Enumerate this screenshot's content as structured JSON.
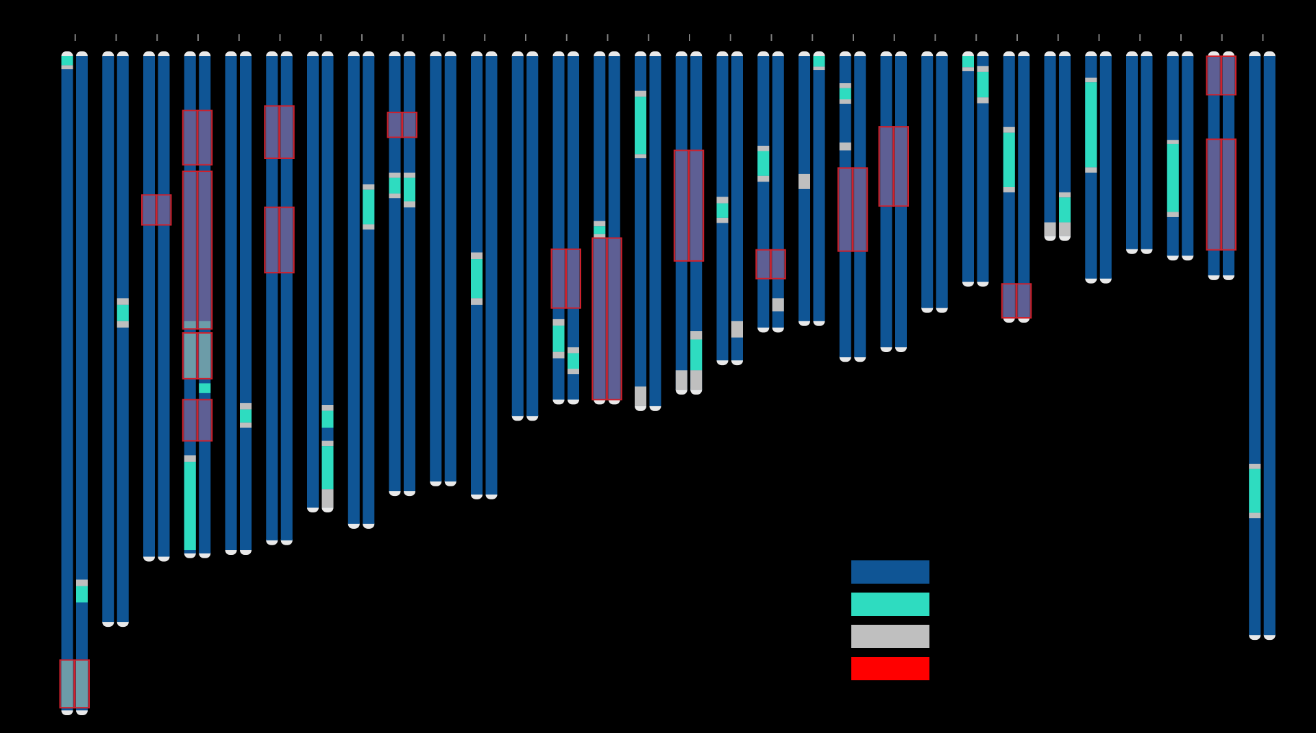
{
  "figure_type": "chromosome ideogram (karyogram) with per-haplotype segment colouring",
  "palette": {
    "background": "#000000",
    "base": "#0f5595",
    "teal": "#2edcc0",
    "grey": "#bfbfbf",
    "highlight_fill": "#a06894",
    "highlight_border": "#d0202c",
    "cap": "#e9e9e9",
    "tick": "#808080"
  },
  "legend": [
    {
      "label": "",
      "color": "#0f5595"
    },
    {
      "label": "",
      "color": "#2edcc0"
    },
    {
      "label": "",
      "color": "#bfbfbf"
    },
    {
      "label": "",
      "color": "#ff0000"
    }
  ],
  "chromosomes": [
    {
      "len": 100,
      "segs": [
        {
          "s": 0.0,
          "e": 1.4,
          "c": "teal",
          "h": "left"
        },
        {
          "s": 1.4,
          "e": 2.0,
          "c": "grey",
          "h": "left"
        },
        {
          "s": 80.0,
          "e": 81.0,
          "c": "grey",
          "h": "right"
        },
        {
          "s": 81.0,
          "e": 83.5,
          "c": "teal",
          "h": "right"
        },
        {
          "s": 92.3,
          "e": 99.6,
          "c": "teal",
          "h": "both"
        }
      ],
      "boxes": [
        {
          "s": 92.3,
          "e": 99.6
        }
      ]
    },
    {
      "len": 86.5,
      "segs": [
        {
          "s": 37.0,
          "e": 38.0,
          "c": "grey",
          "h": "right"
        },
        {
          "s": 38.0,
          "e": 40.5,
          "c": "teal",
          "h": "right"
        },
        {
          "s": 40.5,
          "e": 41.5,
          "c": "grey",
          "h": "right"
        }
      ],
      "boxes": []
    },
    {
      "len": 76.5,
      "segs": [],
      "boxes": [
        {
          "s": 21.2,
          "e": 25.8
        }
      ]
    },
    {
      "len": 76.0,
      "segs": [
        {
          "s": 40.5,
          "e": 41.7,
          "c": "teal",
          "h": "both"
        },
        {
          "s": 42.3,
          "e": 49.3,
          "c": "teal",
          "h": "both"
        },
        {
          "s": 50.0,
          "e": 51.5,
          "c": "teal",
          "h": "right"
        },
        {
          "s": 61.0,
          "e": 62.0,
          "c": "grey",
          "h": "left"
        },
        {
          "s": 62.0,
          "e": 75.5,
          "c": "teal",
          "h": "left"
        }
      ],
      "boxes": [
        {
          "s": 8.3,
          "e": 16.6
        },
        {
          "s": 17.6,
          "e": 41.7
        },
        {
          "s": 42.3,
          "e": 49.3
        },
        {
          "s": 52.5,
          "e": 58.8
        }
      ]
    },
    {
      "len": 75.5,
      "segs": [
        {
          "s": 53.0,
          "e": 54.0,
          "c": "grey",
          "h": "right"
        },
        {
          "s": 54.0,
          "e": 56.0,
          "c": "teal",
          "h": "right"
        },
        {
          "s": 56.0,
          "e": 56.8,
          "c": "grey",
          "h": "right"
        }
      ],
      "boxes": []
    },
    {
      "len": 74.0,
      "segs": [],
      "boxes": [
        {
          "s": 7.6,
          "e": 15.6
        },
        {
          "s": 23.1,
          "e": 33.1
        }
      ]
    },
    {
      "len": 69.0,
      "segs": [
        {
          "s": 53.3,
          "e": 54.2,
          "c": "grey",
          "h": "right"
        },
        {
          "s": 54.2,
          "e": 56.8,
          "c": "teal",
          "h": "right"
        },
        {
          "s": 58.8,
          "e": 59.6,
          "c": "grey",
          "h": "right"
        },
        {
          "s": 59.6,
          "e": 66.2,
          "c": "teal",
          "h": "right"
        },
        {
          "s": 66.2,
          "e": 69.0,
          "c": "grey",
          "h": "right"
        }
      ],
      "boxes": []
    },
    {
      "len": 71.5,
      "segs": [
        {
          "s": 19.6,
          "e": 20.4,
          "c": "grey",
          "h": "right"
        },
        {
          "s": 20.4,
          "e": 25.7,
          "c": "teal",
          "h": "right"
        },
        {
          "s": 25.7,
          "e": 26.5,
          "c": "grey",
          "h": "right"
        }
      ],
      "boxes": []
    },
    {
      "len": 66.5,
      "segs": [
        {
          "s": 17.8,
          "e": 18.6,
          "c": "grey",
          "h": "both"
        },
        {
          "s": 18.6,
          "e": 21.0,
          "c": "teal",
          "h": "left"
        },
        {
          "s": 21.0,
          "e": 21.7,
          "c": "grey",
          "h": "left"
        },
        {
          "s": 18.6,
          "e": 22.2,
          "c": "teal",
          "h": "right"
        },
        {
          "s": 22.2,
          "e": 23.1,
          "c": "grey",
          "h": "right"
        }
      ],
      "boxes": [
        {
          "s": 8.6,
          "e": 12.4
        }
      ]
    },
    {
      "len": 65.0,
      "segs": [],
      "boxes": []
    },
    {
      "len": 67.0,
      "segs": [
        {
          "s": 30.0,
          "e": 31.0,
          "c": "grey",
          "h": "left"
        },
        {
          "s": 31.0,
          "e": 37.0,
          "c": "teal",
          "h": "left"
        },
        {
          "s": 37.0,
          "e": 38.0,
          "c": "grey",
          "h": "left"
        }
      ],
      "boxes": []
    },
    {
      "len": 55.0,
      "segs": [],
      "boxes": []
    },
    {
      "len": 52.5,
      "segs": [
        {
          "s": 40.2,
          "e": 41.2,
          "c": "grey",
          "h": "left"
        },
        {
          "s": 41.2,
          "e": 45.2,
          "c": "teal",
          "h": "left"
        },
        {
          "s": 45.2,
          "e": 46.2,
          "c": "grey",
          "h": "left"
        },
        {
          "s": 44.5,
          "e": 45.4,
          "c": "grey",
          "h": "right"
        },
        {
          "s": 45.4,
          "e": 47.8,
          "c": "teal",
          "h": "right"
        },
        {
          "s": 47.8,
          "e": 48.6,
          "c": "grey",
          "h": "right"
        }
      ],
      "boxes": [
        {
          "s": 29.5,
          "e": 38.5
        }
      ]
    },
    {
      "len": 52.5,
      "segs": [
        {
          "s": 25.2,
          "e": 26.0,
          "c": "grey",
          "h": "left"
        },
        {
          "s": 26.0,
          "e": 27.2,
          "c": "teal",
          "h": "left"
        },
        {
          "s": 27.2,
          "e": 27.8,
          "c": "grey",
          "h": "left"
        }
      ],
      "boxes": [
        {
          "s": 27.8,
          "e": 52.5
        }
      ]
    },
    {
      "len": 53.5,
      "segs": [
        {
          "s": 5.3,
          "e": 6.2,
          "c": "grey",
          "h": "left"
        },
        {
          "s": 6.2,
          "e": 15.0,
          "c": "teal",
          "h": "left"
        },
        {
          "s": 15.0,
          "e": 15.6,
          "c": "grey",
          "h": "left"
        },
        {
          "s": 50.5,
          "e": 53.5,
          "c": "grey",
          "h": "left"
        }
      ],
      "boxes": []
    },
    {
      "len": 51.0,
      "segs": [
        {
          "s": 42.0,
          "e": 43.3,
          "c": "grey",
          "h": "right"
        },
        {
          "s": 43.3,
          "e": 48.0,
          "c": "teal",
          "h": "right"
        },
        {
          "s": 48.0,
          "e": 51.0,
          "c": "grey",
          "h": "left"
        },
        {
          "s": 48.0,
          "e": 51.0,
          "c": "grey",
          "h": "right"
        }
      ],
      "boxes": [
        {
          "s": 14.4,
          "e": 31.3
        }
      ]
    },
    {
      "len": 46.5,
      "segs": [
        {
          "s": 21.5,
          "e": 22.5,
          "c": "grey",
          "h": "left"
        },
        {
          "s": 22.5,
          "e": 24.7,
          "c": "teal",
          "h": "left"
        },
        {
          "s": 24.7,
          "e": 25.5,
          "c": "grey",
          "h": "left"
        },
        {
          "s": 40.5,
          "e": 43.0,
          "c": "grey",
          "h": "right"
        }
      ],
      "boxes": []
    },
    {
      "len": 41.5,
      "segs": [
        {
          "s": 13.7,
          "e": 14.5,
          "c": "grey",
          "h": "left"
        },
        {
          "s": 14.5,
          "e": 18.3,
          "c": "teal",
          "h": "left"
        },
        {
          "s": 18.3,
          "e": 19.2,
          "c": "grey",
          "h": "left"
        },
        {
          "s": 37.0,
          "e": 39.0,
          "c": "grey",
          "h": "right"
        }
      ],
      "boxes": [
        {
          "s": 29.6,
          "e": 34.0
        }
      ]
    },
    {
      "len": 40.5,
      "segs": [
        {
          "s": 0.0,
          "e": 1.6,
          "c": "teal",
          "h": "right"
        },
        {
          "s": 1.6,
          "e": 2.1,
          "c": "grey",
          "h": "right"
        },
        {
          "s": 18.0,
          "e": 20.3,
          "c": "grey",
          "h": "left"
        }
      ],
      "boxes": []
    },
    {
      "len": 46.0,
      "segs": [
        {
          "s": 4.1,
          "e": 4.9,
          "c": "grey",
          "h": "left"
        },
        {
          "s": 4.9,
          "e": 6.6,
          "c": "teal",
          "h": "left"
        },
        {
          "s": 6.6,
          "e": 7.3,
          "c": "grey",
          "h": "left"
        },
        {
          "s": 13.2,
          "e": 14.4,
          "c": "grey",
          "h": "left"
        }
      ],
      "boxes": [
        {
          "s": 17.1,
          "e": 29.8
        }
      ]
    },
    {
      "len": 44.5,
      "segs": [],
      "boxes": [
        {
          "s": 10.8,
          "e": 22.9
        }
      ]
    },
    {
      "len": 38.5,
      "segs": [],
      "boxes": []
    },
    {
      "len": 34.5,
      "segs": [
        {
          "s": 0.0,
          "e": 1.7,
          "c": "teal",
          "h": "left"
        },
        {
          "s": 1.7,
          "e": 2.3,
          "c": "grey",
          "h": "left"
        },
        {
          "s": 1.5,
          "e": 2.4,
          "c": "grey",
          "h": "right"
        },
        {
          "s": 2.4,
          "e": 6.3,
          "c": "teal",
          "h": "right"
        },
        {
          "s": 6.3,
          "e": 7.2,
          "c": "grey",
          "h": "right"
        }
      ],
      "boxes": []
    },
    {
      "len": 40.0,
      "segs": [
        {
          "s": 10.8,
          "e": 11.7,
          "c": "grey",
          "h": "left"
        },
        {
          "s": 11.7,
          "e": 20.0,
          "c": "teal",
          "h": "left"
        },
        {
          "s": 20.0,
          "e": 20.8,
          "c": "grey",
          "h": "left"
        }
      ],
      "boxes": [
        {
          "s": 34.8,
          "e": 40.0
        }
      ]
    },
    {
      "len": 27.5,
      "segs": [
        {
          "s": 25.4,
          "e": 27.5,
          "c": "grey",
          "h": "left"
        },
        {
          "s": 20.8,
          "e": 21.6,
          "c": "grey",
          "h": "right"
        },
        {
          "s": 21.6,
          "e": 25.4,
          "c": "teal",
          "h": "right"
        },
        {
          "s": 25.4,
          "e": 27.5,
          "c": "grey",
          "h": "right"
        }
      ],
      "boxes": []
    },
    {
      "len": 34.0,
      "segs": [
        {
          "s": 3.3,
          "e": 4.0,
          "c": "grey",
          "h": "left"
        },
        {
          "s": 4.0,
          "e": 17.0,
          "c": "teal",
          "h": "left"
        },
        {
          "s": 17.0,
          "e": 17.8,
          "c": "grey",
          "h": "left"
        }
      ],
      "boxes": []
    },
    {
      "len": 29.5,
      "segs": [],
      "boxes": []
    },
    {
      "len": 30.5,
      "segs": [
        {
          "s": 12.8,
          "e": 13.4,
          "c": "grey",
          "h": "left"
        },
        {
          "s": 13.4,
          "e": 23.8,
          "c": "teal",
          "h": "left"
        },
        {
          "s": 23.8,
          "e": 24.6,
          "c": "grey",
          "h": "left"
        }
      ],
      "boxes": []
    },
    {
      "len": 33.5,
      "segs": [],
      "boxes": [
        {
          "s": 0.0,
          "e": 5.9
        },
        {
          "s": 12.7,
          "e": 29.6
        }
      ]
    },
    {
      "len": 88.5,
      "segs": [
        {
          "s": 62.3,
          "e": 63.1,
          "c": "grey",
          "h": "left"
        },
        {
          "s": 63.1,
          "e": 69.8,
          "c": "teal",
          "h": "left"
        },
        {
          "s": 69.8,
          "e": 70.6,
          "c": "grey",
          "h": "left"
        }
      ],
      "boxes": []
    }
  ]
}
